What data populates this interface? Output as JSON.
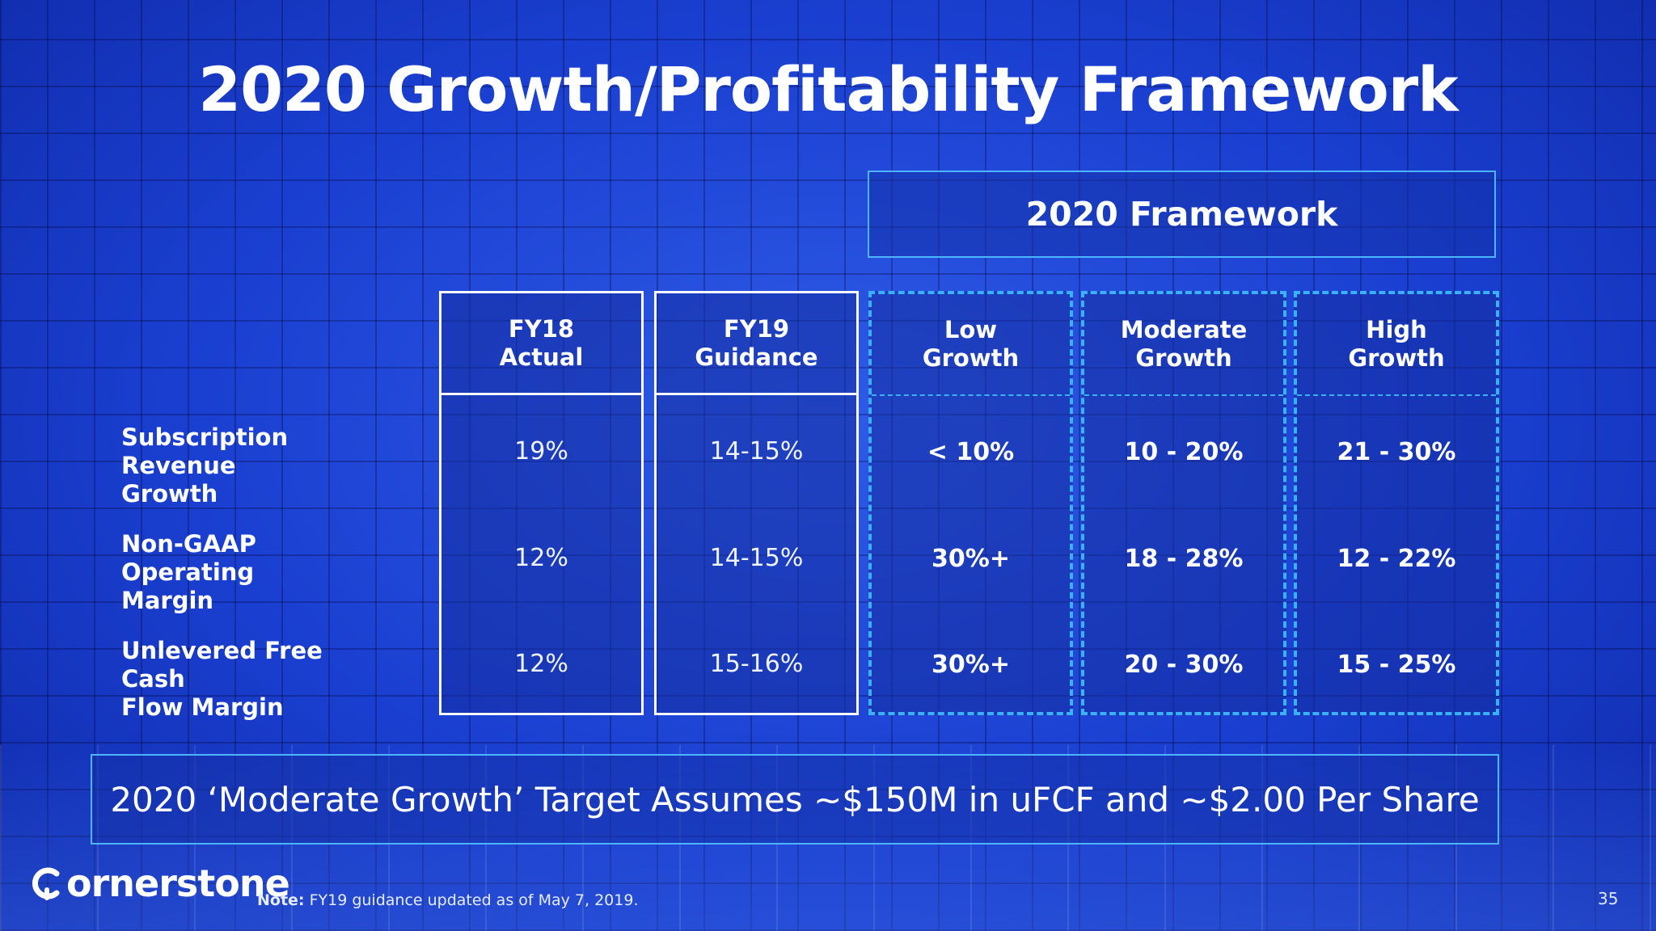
{
  "title": "2020 Growth/Profitability Framework",
  "framework_header": "2020 Framework",
  "columns": [
    {
      "header": "FY18\nActual",
      "values": [
        "19%",
        "12%",
        "12%"
      ]
    },
    {
      "header": "FY19\nGuidance",
      "values": [
        "14-15%",
        "14-15%",
        "15-16%"
      ]
    },
    {
      "header": "Low\nGrowth",
      "values": [
        "< 10%",
        "30%+",
        "30%+"
      ]
    },
    {
      "header": "Moderate\nGrowth",
      "values": [
        "10 - 20%",
        "18 - 28%",
        "20 - 30%"
      ]
    },
    {
      "header": "High\nGrowth",
      "values": [
        "21 - 30%",
        "12 - 22%",
        "15 - 25%"
      ]
    }
  ],
  "row_labels": [
    "Subscription Revenue\nGrowth",
    "Non-GAAP Operating\nMargin",
    "Unlevered Free Cash\nFlow Margin"
  ],
  "banner": "2020 ‘Moderate Growth’ Target Assumes ~$150M in uFCF and ~$2.00 Per Share",
  "logo_text": "ornerstone",
  "note": {
    "label": "Note:",
    "text": " FY19 guidance updated as of May 7, 2019."
  },
  "page_number": "35",
  "colors": {
    "accent_border": "#3ab0ff",
    "background": "#1a3fd0",
    "text": "#ffffff"
  }
}
